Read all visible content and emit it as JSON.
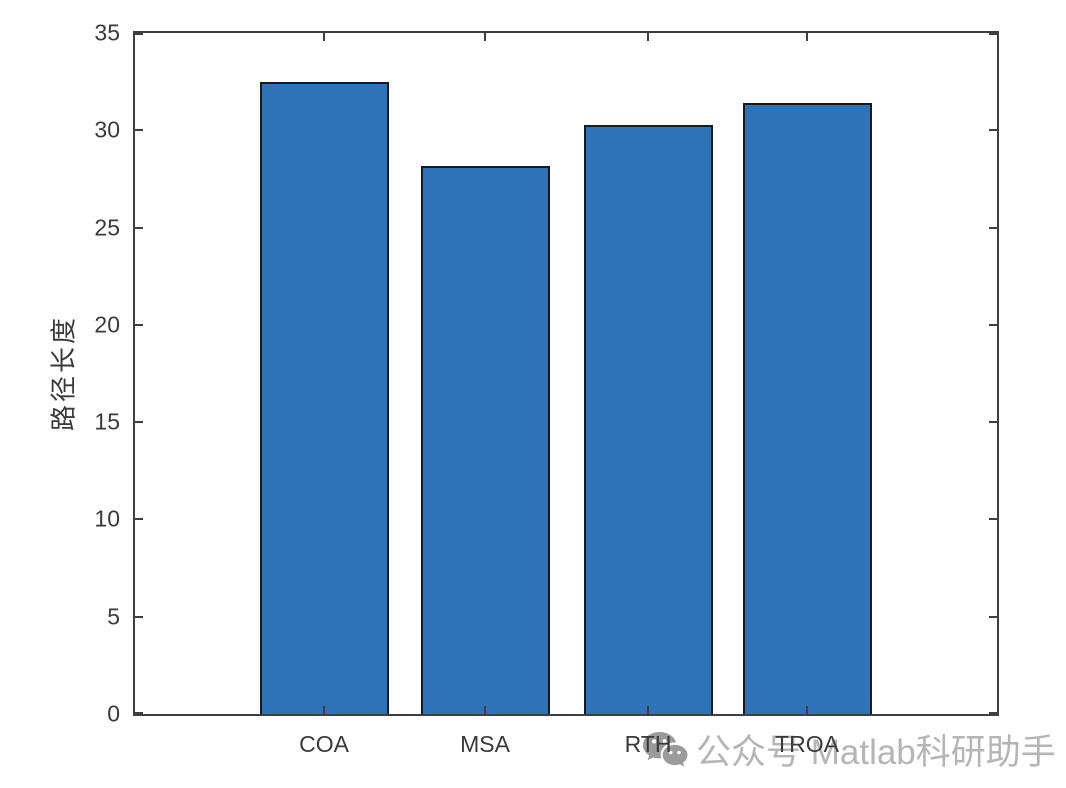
{
  "chart_data": {
    "type": "bar",
    "categories": [
      "COA",
      "MSA",
      "RTH",
      "TROA"
    ],
    "values": [
      32.3,
      28.0,
      30.1,
      31.2
    ],
    "title": "",
    "xlabel": "",
    "ylabel": "路径长度",
    "ylim": [
      0,
      35
    ],
    "yticks": [
      0,
      5,
      10,
      15,
      20,
      25,
      30,
      35
    ],
    "grid": false,
    "legend": null,
    "bar_fill_color": "#2e72b8",
    "bar_edge_color": "#1a1a1a",
    "axis_color": "#3f3f3f",
    "tick_label_color": "#3a3a3a"
  },
  "watermark": {
    "icon": "wechat-chat-bubbles-icon",
    "text": "公众号 Matlab科研助手",
    "color": "#b5b5b5"
  }
}
